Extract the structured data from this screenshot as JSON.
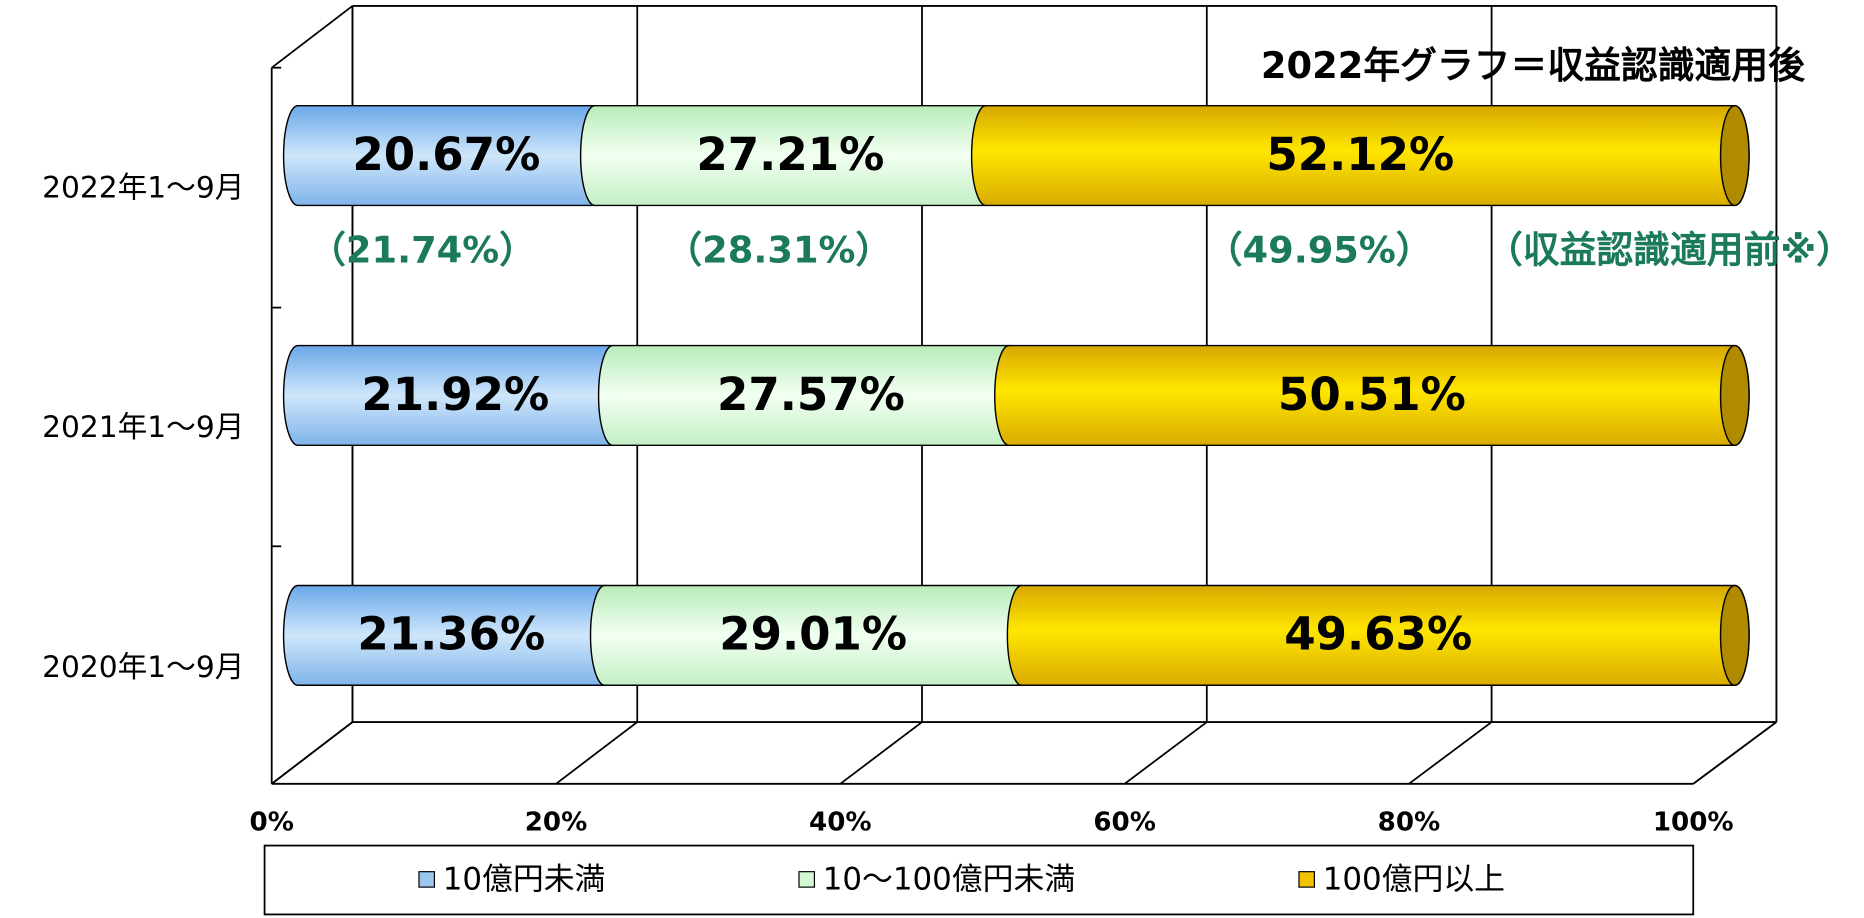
{
  "chart_data": {
    "type": "stacked_bar_horizontal",
    "categories": [
      "2022年1～9月",
      "2021年1～9月",
      "2020年1～9月"
    ],
    "series": [
      {
        "name": "10億円未満",
        "color": "#9cc8f0",
        "values": [
          20.67,
          21.92,
          21.36
        ],
        "value_labels": [
          "20.67%",
          "21.92%",
          "21.36%"
        ]
      },
      {
        "name": "10～100億円未満",
        "color": "#d4f7d4",
        "values": [
          27.21,
          27.57,
          29.01
        ],
        "value_labels": [
          "27.21%",
          "27.57%",
          "29.01%"
        ]
      },
      {
        "name": "100億円以上",
        "color": "#f2c200",
        "values": [
          52.12,
          50.51,
          49.63
        ],
        "value_labels": [
          "52.12%",
          "50.51%",
          "49.63%"
        ]
      }
    ],
    "xlim": [
      0,
      100
    ],
    "xticks": [
      {
        "value": 0,
        "label": "0%"
      },
      {
        "value": 20,
        "label": "20%"
      },
      {
        "value": 40,
        "label": "40%"
      },
      {
        "value": 60,
        "label": "60%"
      },
      {
        "value": 80,
        "label": "80%"
      },
      {
        "value": 100,
        "label": "100%"
      }
    ],
    "grid": true,
    "annotations": [
      "2022年グラフ＝収益認識適用後",
      "（21.74%）",
      "（28.31%）",
      "（49.95%）",
      "（収益認識適用前※）"
    ],
    "legend": "bottom"
  }
}
